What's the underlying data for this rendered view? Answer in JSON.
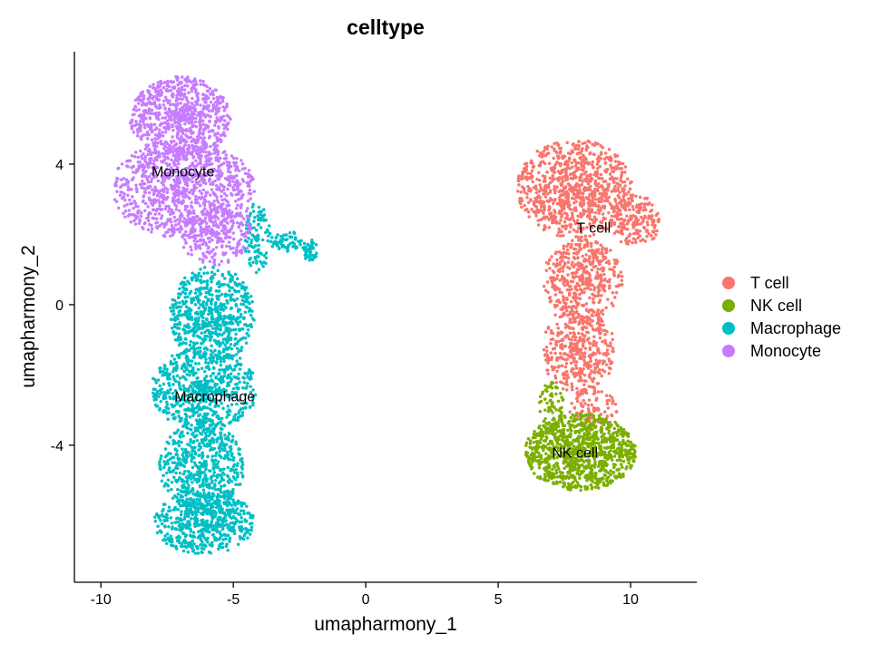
{
  "chart_data": {
    "type": "scatter",
    "title": "celltype",
    "xlabel": "umapharmony_1",
    "ylabel": "umapharmony_2",
    "xlim": [
      -11,
      12.5
    ],
    "ylim": [
      -7.9,
      7.2
    ],
    "x_ticks": [
      -10,
      -5,
      0,
      5,
      10
    ],
    "y_ticks": [
      -4,
      0,
      4
    ],
    "x_tick_labels": [
      "-10",
      "-5",
      "0",
      "5",
      "10"
    ],
    "y_tick_labels": [
      "-4",
      "0",
      "4"
    ],
    "grid": false,
    "legend_position": "right",
    "series": [
      {
        "name": "T cell",
        "color": "#F8766D",
        "label_position": [
          8.6,
          2.2
        ],
        "regions": [
          {
            "cx": 7.9,
            "cy": 3.3,
            "rx": 2.2,
            "ry": 1.4,
            "n": 900
          },
          {
            "cx": 10.2,
            "cy": 2.4,
            "rx": 0.9,
            "ry": 0.8,
            "n": 180
          },
          {
            "cx": 8.2,
            "cy": 0.7,
            "rx": 1.5,
            "ry": 1.2,
            "n": 450
          },
          {
            "cx": 8.0,
            "cy": -1.3,
            "rx": 1.4,
            "ry": 1.3,
            "n": 420
          },
          {
            "cx": 8.6,
            "cy": -3.0,
            "rx": 0.9,
            "ry": 0.6,
            "n": 90
          }
        ]
      },
      {
        "name": "NK cell",
        "color": "#7CAE00",
        "label_position": [
          7.9,
          -4.2
        ],
        "regions": [
          {
            "cx": 8.1,
            "cy": -4.2,
            "rx": 2.1,
            "ry": 1.1,
            "n": 1000
          },
          {
            "cx": 7.0,
            "cy": -2.9,
            "rx": 0.5,
            "ry": 0.7,
            "n": 70
          }
        ]
      },
      {
        "name": "Macrophage",
        "color": "#00BFC4",
        "label_position": [
          -5.7,
          -2.6
        ],
        "regions": [
          {
            "cx": -5.8,
            "cy": -0.3,
            "rx": 1.6,
            "ry": 1.4,
            "n": 650
          },
          {
            "cx": -6.1,
            "cy": -2.4,
            "rx": 2.0,
            "ry": 1.2,
            "n": 650
          },
          {
            "cx": -6.2,
            "cy": -4.6,
            "rx": 1.6,
            "ry": 1.3,
            "n": 550
          },
          {
            "cx": -6.1,
            "cy": -6.2,
            "rx": 1.9,
            "ry": 0.9,
            "n": 550
          },
          {
            "cx": -4.1,
            "cy": 1.9,
            "rx": 0.5,
            "ry": 1.0,
            "n": 110
          },
          {
            "cx": -3.0,
            "cy": 1.8,
            "rx": 0.6,
            "ry": 0.3,
            "n": 60
          },
          {
            "cx": -2.1,
            "cy": 1.55,
            "rx": 0.3,
            "ry": 0.3,
            "n": 40
          }
        ]
      },
      {
        "name": "Monocyte",
        "color": "#C77CFF",
        "label_position": [
          -6.9,
          3.8
        ],
        "regions": [
          {
            "cx": -7.0,
            "cy": 5.3,
            "rx": 1.9,
            "ry": 1.2,
            "n": 750
          },
          {
            "cx": -6.9,
            "cy": 3.3,
            "rx": 2.7,
            "ry": 1.4,
            "n": 950
          },
          {
            "cx": -5.6,
            "cy": 2.0,
            "rx": 1.4,
            "ry": 0.9,
            "n": 250
          }
        ]
      }
    ]
  }
}
